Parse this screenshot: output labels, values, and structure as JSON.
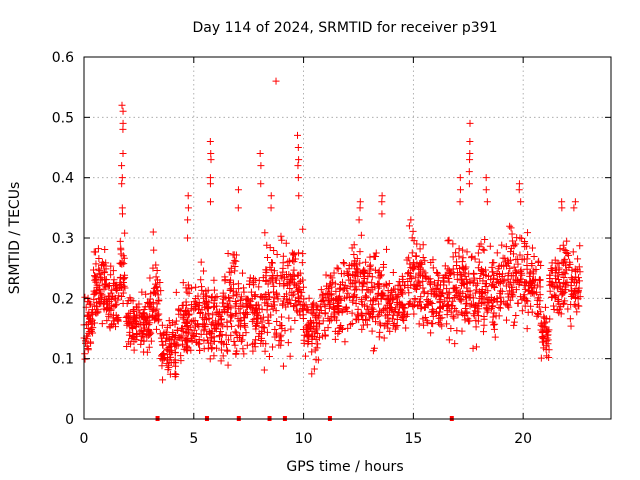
{
  "chart_data": {
    "type": "scatter",
    "title": "Day 114 of 2024, SRMTID for receiver p391",
    "xlabel": "GPS time / hours",
    "ylabel": "SRMTID / TECUs",
    "xlim": [
      0,
      24
    ],
    "ylim": [
      0,
      0.6
    ],
    "grid": true,
    "marker": "plus",
    "color": "#ff0000",
    "xticks": [
      {
        "value": 0,
        "label": "0"
      },
      {
        "value": 5,
        "label": "5"
      },
      {
        "value": 10,
        "label": "10"
      },
      {
        "value": 15,
        "label": "15"
      },
      {
        "value": 20,
        "label": "20"
      }
    ],
    "yticks": [
      {
        "value": 0,
        "label": "0"
      },
      {
        "value": 0.1,
        "label": "0.1"
      },
      {
        "value": 0.2,
        "label": "0.2"
      },
      {
        "value": 0.3,
        "label": "0.3"
      },
      {
        "value": 0.4,
        "label": "0.4"
      },
      {
        "value": 0.5,
        "label": "0.5"
      },
      {
        "value": 0.6,
        "label": "0.6"
      }
    ],
    "zero_marks_hours": [
      3.35,
      5.6,
      7.05,
      8.45,
      9.15,
      11.2,
      16.75
    ],
    "band_seed": 20240423,
    "baseline_bands": [
      {
        "x0": 0.0,
        "x1": 0.4,
        "low": 0.08,
        "high": 0.24,
        "n": 45
      },
      {
        "x0": 0.4,
        "x1": 1.0,
        "low": 0.13,
        "high": 0.3,
        "n": 70
      },
      {
        "x0": 1.0,
        "x1": 1.6,
        "low": 0.12,
        "high": 0.26,
        "n": 60
      },
      {
        "x0": 1.6,
        "x1": 1.9,
        "low": 0.14,
        "high": 0.33,
        "n": 30
      },
      {
        "x0": 1.9,
        "x1": 3.0,
        "low": 0.09,
        "high": 0.22,
        "n": 110
      },
      {
        "x0": 3.0,
        "x1": 3.5,
        "low": 0.1,
        "high": 0.3,
        "n": 45
      },
      {
        "x0": 3.5,
        "x1": 4.2,
        "low": 0.05,
        "high": 0.18,
        "n": 70
      },
      {
        "x0": 4.2,
        "x1": 5.0,
        "low": 0.07,
        "high": 0.25,
        "n": 80
      },
      {
        "x0": 5.0,
        "x1": 5.6,
        "low": 0.08,
        "high": 0.28,
        "n": 60
      },
      {
        "x0": 5.6,
        "x1": 6.3,
        "low": 0.06,
        "high": 0.24,
        "n": 70
      },
      {
        "x0": 6.3,
        "x1": 7.3,
        "low": 0.05,
        "high": 0.31,
        "n": 100
      },
      {
        "x0": 7.3,
        "x1": 8.2,
        "low": 0.09,
        "high": 0.27,
        "n": 85
      },
      {
        "x0": 8.2,
        "x1": 9.2,
        "low": 0.06,
        "high": 0.33,
        "n": 95
      },
      {
        "x0": 9.2,
        "x1": 10.0,
        "low": 0.1,
        "high": 0.34,
        "n": 80
      },
      {
        "x0": 10.0,
        "x1": 10.8,
        "low": 0.07,
        "high": 0.22,
        "n": 75
      },
      {
        "x0": 10.8,
        "x1": 11.8,
        "low": 0.1,
        "high": 0.27,
        "n": 95
      },
      {
        "x0": 11.8,
        "x1": 12.8,
        "low": 0.12,
        "high": 0.32,
        "n": 95
      },
      {
        "x0": 12.8,
        "x1": 13.8,
        "low": 0.11,
        "high": 0.3,
        "n": 95
      },
      {
        "x0": 13.8,
        "x1": 14.7,
        "low": 0.12,
        "high": 0.26,
        "n": 85
      },
      {
        "x0": 14.7,
        "x1": 15.6,
        "low": 0.13,
        "high": 0.33,
        "n": 85
      },
      {
        "x0": 15.6,
        "x1": 16.4,
        "low": 0.12,
        "high": 0.29,
        "n": 75
      },
      {
        "x0": 16.4,
        "x1": 17.2,
        "low": 0.11,
        "high": 0.33,
        "n": 75
      },
      {
        "x0": 17.2,
        "x1": 18.0,
        "low": 0.1,
        "high": 0.31,
        "n": 75
      },
      {
        "x0": 18.0,
        "x1": 19.0,
        "low": 0.11,
        "high": 0.32,
        "n": 95
      },
      {
        "x0": 19.0,
        "x1": 20.2,
        "low": 0.13,
        "high": 0.35,
        "n": 110
      },
      {
        "x0": 20.2,
        "x1": 20.8,
        "low": 0.14,
        "high": 0.31,
        "n": 55
      },
      {
        "x0": 20.8,
        "x1": 21.2,
        "low": 0.09,
        "high": 0.2,
        "n": 40
      },
      {
        "x0": 21.2,
        "x1": 22.6,
        "low": 0.13,
        "high": 0.32,
        "n": 130
      }
    ],
    "spikes": [
      {
        "x": 1.75,
        "values": [
          0.52,
          0.51,
          0.49,
          0.48,
          0.44,
          0.42,
          0.4,
          0.39,
          0.35,
          0.34
        ]
      },
      {
        "x": 3.15,
        "values": [
          0.31,
          0.28,
          0.25
        ]
      },
      {
        "x": 4.75,
        "values": [
          0.37,
          0.35,
          0.33,
          0.3
        ]
      },
      {
        "x": 5.75,
        "values": [
          0.46,
          0.44,
          0.43,
          0.4,
          0.39,
          0.36
        ]
      },
      {
        "x": 7.05,
        "values": [
          0.38,
          0.35
        ]
      },
      {
        "x": 8.05,
        "values": [
          0.44,
          0.42,
          0.39
        ]
      },
      {
        "x": 8.75,
        "values": [
          0.56
        ]
      },
      {
        "x": 8.55,
        "values": [
          0.37,
          0.35
        ]
      },
      {
        "x": 9.75,
        "values": [
          0.47,
          0.45,
          0.43,
          0.42,
          0.4,
          0.37
        ]
      },
      {
        "x": 12.55,
        "values": [
          0.36,
          0.35,
          0.33
        ]
      },
      {
        "x": 13.55,
        "values": [
          0.37,
          0.36,
          0.34
        ]
      },
      {
        "x": 14.85,
        "values": [
          0.33,
          0.32
        ]
      },
      {
        "x": 17.15,
        "values": [
          0.4,
          0.38,
          0.36
        ]
      },
      {
        "x": 17.55,
        "values": [
          0.49,
          0.46,
          0.44,
          0.43,
          0.41,
          0.39
        ]
      },
      {
        "x": 18.35,
        "values": [
          0.4,
          0.38,
          0.36
        ]
      },
      {
        "x": 19.85,
        "values": [
          0.39,
          0.38,
          0.36
        ]
      },
      {
        "x": 21.75,
        "values": [
          0.36,
          0.35
        ]
      },
      {
        "x": 22.35,
        "values": [
          0.36,
          0.35
        ]
      }
    ]
  }
}
